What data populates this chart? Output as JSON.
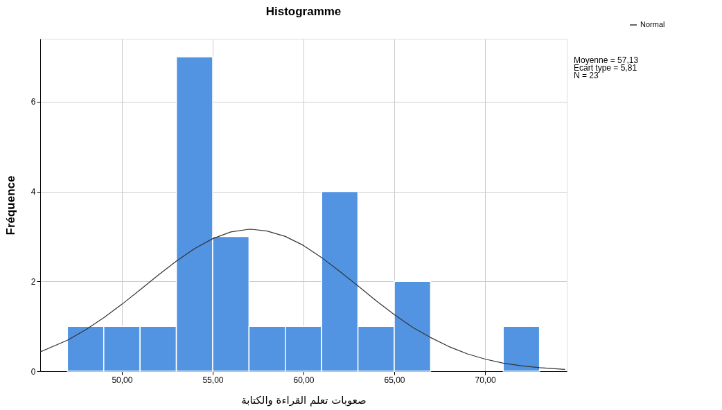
{
  "chart_data": {
    "type": "histogram",
    "title": "Histogramme",
    "xlabel": "صعوبات تعلم القراءة والكتابة",
    "ylabel": "Fréquence",
    "bins": [
      47,
      49,
      51,
      53,
      55,
      57,
      59,
      61,
      63,
      65,
      67,
      69,
      71,
      73
    ],
    "series": [
      {
        "color": "#5294e2",
        "values": [
          1,
          1,
          1,
          7,
          3,
          1,
          1,
          4,
          1,
          2,
          0,
          0,
          1
        ]
      },
      {
        "type": "line",
        "name": "Normal",
        "color": "#333333",
        "x": [
          45.5,
          47,
          48,
          49,
          50,
          51,
          52,
          53,
          54,
          55,
          56,
          57,
          57.13,
          58,
          59,
          60,
          61,
          62,
          63,
          64,
          65,
          66,
          67,
          68,
          69,
          70,
          71,
          72,
          73,
          74.4
        ],
        "values": [
          0.43,
          0.69,
          0.92,
          1.19,
          1.49,
          1.81,
          2.14,
          2.45,
          2.73,
          2.95,
          3.1,
          3.16,
          3.16,
          3.12,
          3.0,
          2.8,
          2.53,
          2.22,
          1.9,
          1.57,
          1.26,
          0.98,
          0.75,
          0.55,
          0.39,
          0.27,
          0.18,
          0.12,
          0.08,
          0.04
        ]
      }
    ],
    "annotations": [
      "Moyenne = 57,13",
      "Ecart type = 5,81",
      "N = 23"
    ],
    "xlim": [
      45.5,
      74.5
    ],
    "ylim": [
      0,
      7.4
    ],
    "xticks": [
      {
        "value": 50,
        "label": "50,00"
      },
      {
        "value": 55,
        "label": "55,00"
      },
      {
        "value": 60,
        "label": "60,00"
      },
      {
        "value": 65,
        "label": "65,00"
      },
      {
        "value": 70,
        "label": "70,00"
      }
    ],
    "yticks": [
      0,
      2,
      4,
      6
    ],
    "grid": true,
    "legend": "top right"
  }
}
